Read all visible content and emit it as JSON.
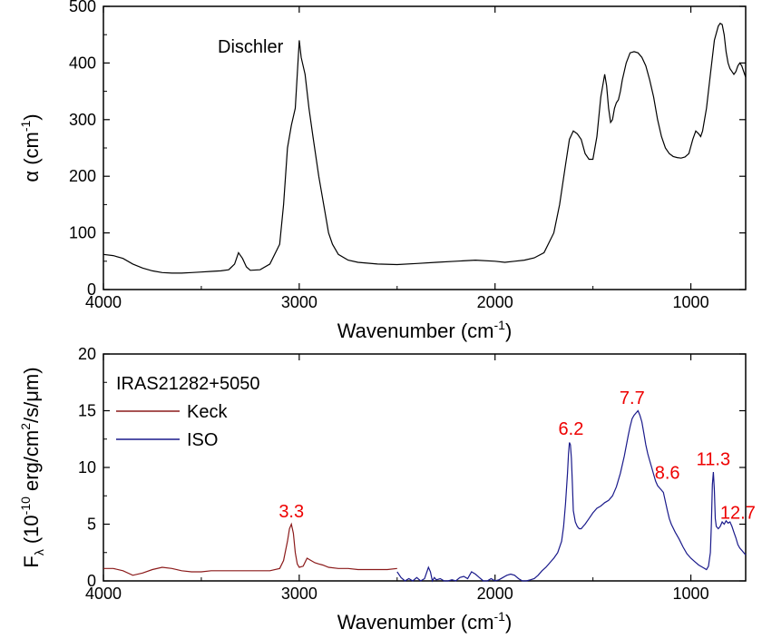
{
  "chart_data": [
    {
      "type": "line",
      "annotation": "Dischler",
      "xlabel": "Wavenumber (cm",
      "xlabel_sup": "-1",
      "xlabel_end": ")",
      "ylabel": "α (cm",
      "ylabel_sup": "-1",
      "ylabel_end": ")",
      "xlim": [
        4000,
        720
      ],
      "ylim": [
        0,
        500
      ],
      "xticks": [
        "4000",
        "3000",
        "2000",
        "1000"
      ],
      "yticks": [
        "0",
        "100",
        "200",
        "300",
        "400",
        "500"
      ],
      "series": [
        {
          "color": "#000000",
          "x": [
            4000,
            3950,
            3900,
            3850,
            3800,
            3750,
            3700,
            3650,
            3600,
            3550,
            3500,
            3450,
            3400,
            3360,
            3330,
            3310,
            3290,
            3270,
            3250,
            3200,
            3150,
            3100,
            3080,
            3060,
            3040,
            3020,
            3010,
            3000,
            2990,
            2970,
            2950,
            2930,
            2900,
            2870,
            2850,
            2830,
            2800,
            2750,
            2700,
            2600,
            2500,
            2400,
            2300,
            2200,
            2100,
            2000,
            1950,
            1900,
            1850,
            1800,
            1750,
            1700,
            1670,
            1640,
            1620,
            1600,
            1580,
            1560,
            1540,
            1520,
            1500,
            1480,
            1460,
            1440,
            1430,
            1420,
            1410,
            1400,
            1390,
            1380,
            1370,
            1360,
            1350,
            1330,
            1310,
            1290,
            1270,
            1250,
            1230,
            1210,
            1190,
            1170,
            1150,
            1130,
            1110,
            1090,
            1070,
            1050,
            1030,
            1010,
            990,
            975,
            960,
            950,
            940,
            920,
            900,
            880,
            860,
            850,
            840,
            830,
            820,
            810,
            800,
            790,
            780,
            770,
            760,
            750,
            740,
            730,
            720
          ],
          "y": [
            62,
            60,
            55,
            45,
            38,
            33,
            30,
            29,
            29,
            30,
            31,
            32,
            33,
            35,
            45,
            65,
            55,
            40,
            34,
            35,
            45,
            80,
            150,
            250,
            290,
            320,
            380,
            440,
            410,
            380,
            320,
            270,
            200,
            140,
            100,
            80,
            62,
            52,
            48,
            45,
            44,
            46,
            48,
            50,
            52,
            50,
            48,
            50,
            52,
            56,
            65,
            100,
            150,
            220,
            265,
            280,
            275,
            265,
            240,
            230,
            230,
            270,
            340,
            380,
            360,
            320,
            295,
            300,
            320,
            330,
            335,
            350,
            370,
            400,
            418,
            420,
            418,
            410,
            395,
            370,
            340,
            300,
            270,
            250,
            240,
            235,
            233,
            232,
            234,
            240,
            265,
            280,
            275,
            270,
            280,
            320,
            380,
            440,
            465,
            470,
            468,
            450,
            420,
            400,
            390,
            385,
            380,
            385,
            395,
            400,
            395,
            385,
            375
          ]
        }
      ]
    },
    {
      "type": "line",
      "xlabel": "Wavenumber (cm",
      "xlabel_sup": "-1",
      "xlabel_end": ")",
      "ylabel_main": "F",
      "ylabel_sub": "λ",
      "ylabel_paren": "(10",
      "ylabel_sup1": "-10",
      "ylabel_mid": " erg/cm",
      "ylabel_sup2": "2",
      "ylabel_end": "/s/μm)",
      "xlim": [
        4000,
        720
      ],
      "ylim": [
        0,
        20
      ],
      "xticks": [
        "4000",
        "3000",
        "2000",
        "1000"
      ],
      "yticks": [
        "0",
        "5",
        "10",
        "15",
        "20"
      ],
      "legend": {
        "title": "IRAS21282+5050",
        "placement": "top-left"
      },
      "peaks": [
        {
          "label": "3.3",
          "x": 3040,
          "y": 5.6
        },
        {
          "label": "6.2",
          "x": 1612,
          "y": 12.9
        },
        {
          "label": "7.7",
          "x": 1300,
          "y": 15.6
        },
        {
          "label": "8.6",
          "x": 1120,
          "y": 9.0
        },
        {
          "label": "11.3",
          "x": 885,
          "y": 10.2
        },
        {
          "label": "12.7",
          "x": 760,
          "y": 5.5
        }
      ],
      "series": [
        {
          "name": "Keck",
          "color": "#8b1a1a",
          "x": [
            4000,
            3950,
            3900,
            3850,
            3800,
            3750,
            3700,
            3650,
            3600,
            3550,
            3500,
            3450,
            3400,
            3350,
            3300,
            3250,
            3200,
            3150,
            3100,
            3080,
            3060,
            3050,
            3040,
            3030,
            3020,
            3010,
            3000,
            2980,
            2960,
            2940,
            2920,
            2900,
            2880,
            2850,
            2800,
            2750,
            2700,
            2650,
            2600,
            2550,
            2500
          ],
          "y": [
            1.1,
            1.1,
            0.9,
            0.5,
            0.7,
            1.0,
            1.2,
            1.1,
            0.9,
            0.8,
            0.8,
            0.9,
            0.9,
            0.9,
            0.9,
            0.9,
            0.9,
            0.9,
            1.1,
            1.8,
            3.5,
            4.6,
            5.0,
            4.2,
            2.5,
            1.5,
            1.2,
            1.3,
            2.0,
            1.8,
            1.6,
            1.5,
            1.4,
            1.2,
            1.1,
            1.1,
            1.0,
            1.0,
            1.0,
            1.0,
            1.1
          ]
        },
        {
          "name": "ISO",
          "color": "#1a1a8b",
          "x": [
            2500,
            2480,
            2460,
            2440,
            2420,
            2400,
            2380,
            2360,
            2340,
            2330,
            2320,
            2310,
            2300,
            2280,
            2260,
            2240,
            2220,
            2200,
            2180,
            2160,
            2140,
            2120,
            2100,
            2080,
            2060,
            2040,
            2020,
            2000,
            1980,
            1960,
            1940,
            1920,
            1900,
            1880,
            1860,
            1840,
            1820,
            1800,
            1780,
            1760,
            1740,
            1720,
            1700,
            1680,
            1660,
            1650,
            1640,
            1630,
            1625,
            1620,
            1615,
            1610,
            1605,
            1600,
            1590,
            1580,
            1570,
            1560,
            1550,
            1540,
            1520,
            1500,
            1480,
            1460,
            1440,
            1420,
            1400,
            1380,
            1360,
            1340,
            1320,
            1310,
            1300,
            1290,
            1280,
            1270,
            1260,
            1250,
            1240,
            1230,
            1220,
            1210,
            1200,
            1190,
            1180,
            1170,
            1160,
            1150,
            1140,
            1130,
            1120,
            1110,
            1100,
            1080,
            1060,
            1040,
            1020,
            1000,
            980,
            960,
            940,
            920,
            910,
            900,
            895,
            890,
            885,
            880,
            875,
            870,
            860,
            850,
            840,
            830,
            820,
            810,
            800,
            790,
            780,
            770,
            760,
            750,
            740,
            730,
            720
          ],
          "y": [
            0.8,
            0.3,
            -0.3,
            0.2,
            -0.2,
            0.3,
            -0.4,
            0.2,
            1.2,
            0.8,
            -0.3,
            0.3,
            0.1,
            0.2,
            0.0,
            -0.2,
            0.1,
            0.0,
            0.3,
            0.4,
            0.2,
            0.8,
            0.6,
            0.3,
            0.0,
            -0.2,
            0.2,
            0.0,
            0.1,
            0.3,
            0.5,
            0.6,
            0.5,
            0.2,
            0.0,
            -0.1,
            0.1,
            0.2,
            0.5,
            0.9,
            1.2,
            1.6,
            2.0,
            2.5,
            3.5,
            4.8,
            6.8,
            9.5,
            11.2,
            12.2,
            12.0,
            10.8,
            8.5,
            6.2,
            5.2,
            4.8,
            4.6,
            4.6,
            4.8,
            5.0,
            5.5,
            6.0,
            6.4,
            6.6,
            6.9,
            7.1,
            7.5,
            8.3,
            9.5,
            11.0,
            12.8,
            13.6,
            14.3,
            14.6,
            14.8,
            15.0,
            14.6,
            14.0,
            13.0,
            12.0,
            11.2,
            10.6,
            10.0,
            9.4,
            8.8,
            8.4,
            8.2,
            8.0,
            7.8,
            7.0,
            6.2,
            5.5,
            5.0,
            4.3,
            3.7,
            3.0,
            2.4,
            2.0,
            1.7,
            1.4,
            1.2,
            1.0,
            1.3,
            2.5,
            5.0,
            8.5,
            9.6,
            8.0,
            5.5,
            4.8,
            4.6,
            4.8,
            5.2,
            5.0,
            5.3,
            5.1,
            5.2,
            4.8,
            4.3,
            3.8,
            3.2,
            2.9,
            2.7,
            2.5,
            2.3
          ]
        }
      ]
    }
  ]
}
